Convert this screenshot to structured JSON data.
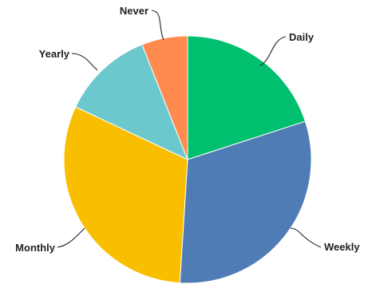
{
  "chart_data": {
    "type": "pie",
    "categories": [
      "Daily",
      "Weekly",
      "Monthly",
      "Yearly",
      "Never"
    ],
    "values": [
      20,
      31,
      31,
      12,
      6
    ],
    "colors": [
      "#00bf6f",
      "#507cb6",
      "#f9be00",
      "#6bc8cd",
      "#ff8b4f"
    ],
    "start_angle_deg": 0,
    "direction": "clockwise",
    "legend": "none",
    "labels_outside": true
  }
}
